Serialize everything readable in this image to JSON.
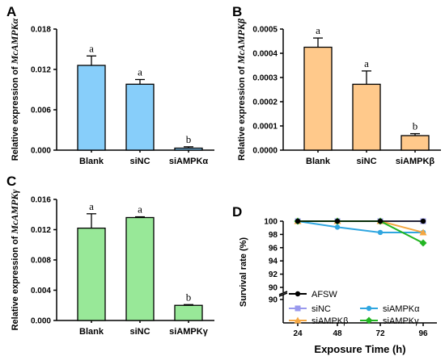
{
  "chart_data": [
    {
      "panel": "A",
      "type": "bar",
      "ylabel_prefix": "Relative  expression of",
      "ylabel_gene": "McAMPKα",
      "categories": [
        "Blank",
        "siNC",
        "siAMPKα"
      ],
      "values": [
        0.0126,
        0.0098,
        0.0003
      ],
      "errors": [
        0.0014,
        0.0007,
        0.0002
      ],
      "significance": [
        "a",
        "a",
        "b"
      ],
      "ylim": [
        0,
        0.018
      ],
      "yticks": [
        "0.000",
        "0.006",
        "0.012",
        "0.018"
      ],
      "bar_color": "#87CEFA"
    },
    {
      "panel": "B",
      "type": "bar",
      "ylabel_prefix": "Relative  expression of",
      "ylabel_gene": "McAMPKβ",
      "categories": [
        "Blank",
        "siNC",
        "siAMPKβ"
      ],
      "values": [
        0.000425,
        0.000272,
        6e-05
      ],
      "errors": [
        3.8e-05,
        5.5e-05,
        8e-06
      ],
      "significance": [
        "a",
        "a",
        "b"
      ],
      "ylim": [
        0,
        0.0005
      ],
      "yticks": [
        "0.0000",
        "0.0001",
        "0.0002",
        "0.0003",
        "0.0004",
        "0.0005"
      ],
      "bar_color": "#FFC98B"
    },
    {
      "panel": "C",
      "type": "bar",
      "ylabel_prefix": "Relative  expression of",
      "ylabel_gene": "McAMPKγ",
      "categories": [
        "Blank",
        "siNC",
        "siAMPKγ"
      ],
      "values": [
        0.0122,
        0.0136,
        0.002
      ],
      "errors": [
        0.0019,
        0.0001,
        0.0001
      ],
      "significance": [
        "a",
        "a",
        "b"
      ],
      "ylim": [
        0,
        0.016
      ],
      "yticks": [
        "0.000",
        "0.004",
        "0.008",
        "0.012",
        "0.016"
      ],
      "bar_color": "#98E898"
    },
    {
      "panel": "D",
      "type": "line",
      "xlabel": "Exposure Time (h)",
      "ylabel": "Survival rate (%)",
      "x": [
        24,
        48,
        72,
        96
      ],
      "xticks": [
        "24",
        "48",
        "72",
        "96"
      ],
      "yticks": [
        "90",
        "92",
        "94",
        "96",
        "98",
        "100"
      ],
      "ylim": [
        90,
        100
      ],
      "break_tick": "90",
      "series": [
        {
          "name": "AFSW",
          "values": [
            100,
            100,
            100,
            100
          ],
          "color": "#000000",
          "marker": "circle"
        },
        {
          "name": "siNC",
          "values": [
            100,
            100,
            100,
            100
          ],
          "color": "#9999EE",
          "marker": "square"
        },
        {
          "name": "siAMPKα",
          "values": [
            100,
            99.1,
            98.3,
            98.3
          ],
          "color": "#2FA6E0",
          "marker": "circle"
        },
        {
          "name": "siAMPKβ",
          "values": [
            100,
            100,
            100,
            98.3
          ],
          "color": "#F5A742",
          "marker": "triangle"
        },
        {
          "name": "siAMPKγ",
          "values": [
            100,
            100,
            100,
            96.7
          ],
          "color": "#22B522",
          "marker": "diamond"
        }
      ]
    }
  ]
}
